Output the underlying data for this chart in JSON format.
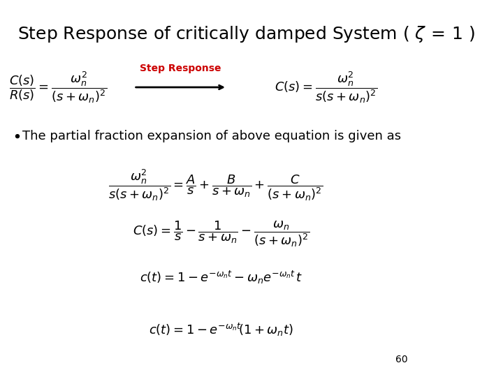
{
  "title_part1": "Step Response of critically damped System ( ",
  "title_zeta": "$\\zeta_{\\,=1}$",
  "title_part2": " )",
  "title_fontsize": 18,
  "background_color": "#ffffff",
  "text_color": "#000000",
  "arrow_label": "Step Response",
  "arrow_label_color": "#cc0000",
  "bullet_text": "The partial fraction expansion of above equation is given as",
  "eq1": "$\\dfrac{C(s)}{R(s)} = \\dfrac{\\omega_n^2}{(s + \\omega_n)^2}$",
  "eq2": "$C(s) = \\dfrac{\\omega_n^2}{s(s + \\omega_n)^2}$",
  "eq3": "$\\dfrac{\\omega_n^2}{s(s+\\omega_n)^2} = \\dfrac{A}{s} + \\dfrac{B}{s+\\omega_n} + \\dfrac{C}{(s+\\omega_n)^2}$",
  "eq4": "$C(s) = \\dfrac{1}{s} - \\dfrac{1}{s+\\omega_n} - \\dfrac{\\omega_n}{(s+\\omega_n)^2}$",
  "eq5": "$c(t) = 1 - e^{-\\omega_n t} - \\omega_n e^{-\\omega_n t}\\, t$",
  "eq6": "$c(t) = 1 - e^{-\\omega_n t}\\!\\left(1 + \\omega_n t\\right)$",
  "page_number": "60",
  "eq_fontsize": 13,
  "bullet_fontsize": 13
}
